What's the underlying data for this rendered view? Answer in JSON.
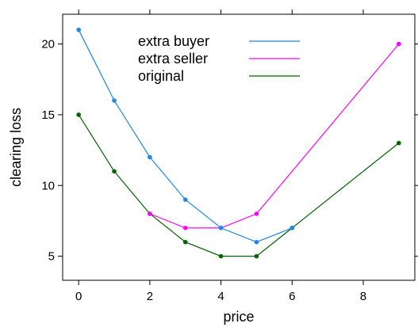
{
  "chart_data": {
    "type": "line",
    "title": "",
    "xlabel": "price",
    "ylabel": "clearing loss",
    "xlim": [
      -0.45,
      9.45
    ],
    "ylim": [
      3.3,
      22.1
    ],
    "xticks": [
      0,
      2,
      4,
      6,
      8
    ],
    "yticks": [
      5,
      10,
      15,
      20
    ],
    "tick_labels_x": [
      "0",
      "2",
      "4",
      "6",
      "8"
    ],
    "tick_labels_y": [
      "5",
      "10",
      "15",
      "20"
    ],
    "grid": false,
    "legend_position": "top-center",
    "series": [
      {
        "name": "extra buyer",
        "color": "#1e88e5",
        "x": [
          0,
          1,
          2,
          3,
          4,
          5,
          6
        ],
        "y": [
          21,
          16,
          12,
          9,
          7,
          6,
          7
        ]
      },
      {
        "name": "extra seller",
        "color": "#ff00ff",
        "x": [
          2,
          3,
          4,
          5,
          9
        ],
        "y": [
          8,
          7,
          7,
          8,
          20
        ]
      },
      {
        "name": "original",
        "color": "#006400",
        "x": [
          0,
          1,
          2,
          3,
          4,
          5,
          6,
          9
        ],
        "y": [
          15,
          11,
          8,
          6,
          5,
          5,
          7,
          13
        ]
      }
    ]
  }
}
